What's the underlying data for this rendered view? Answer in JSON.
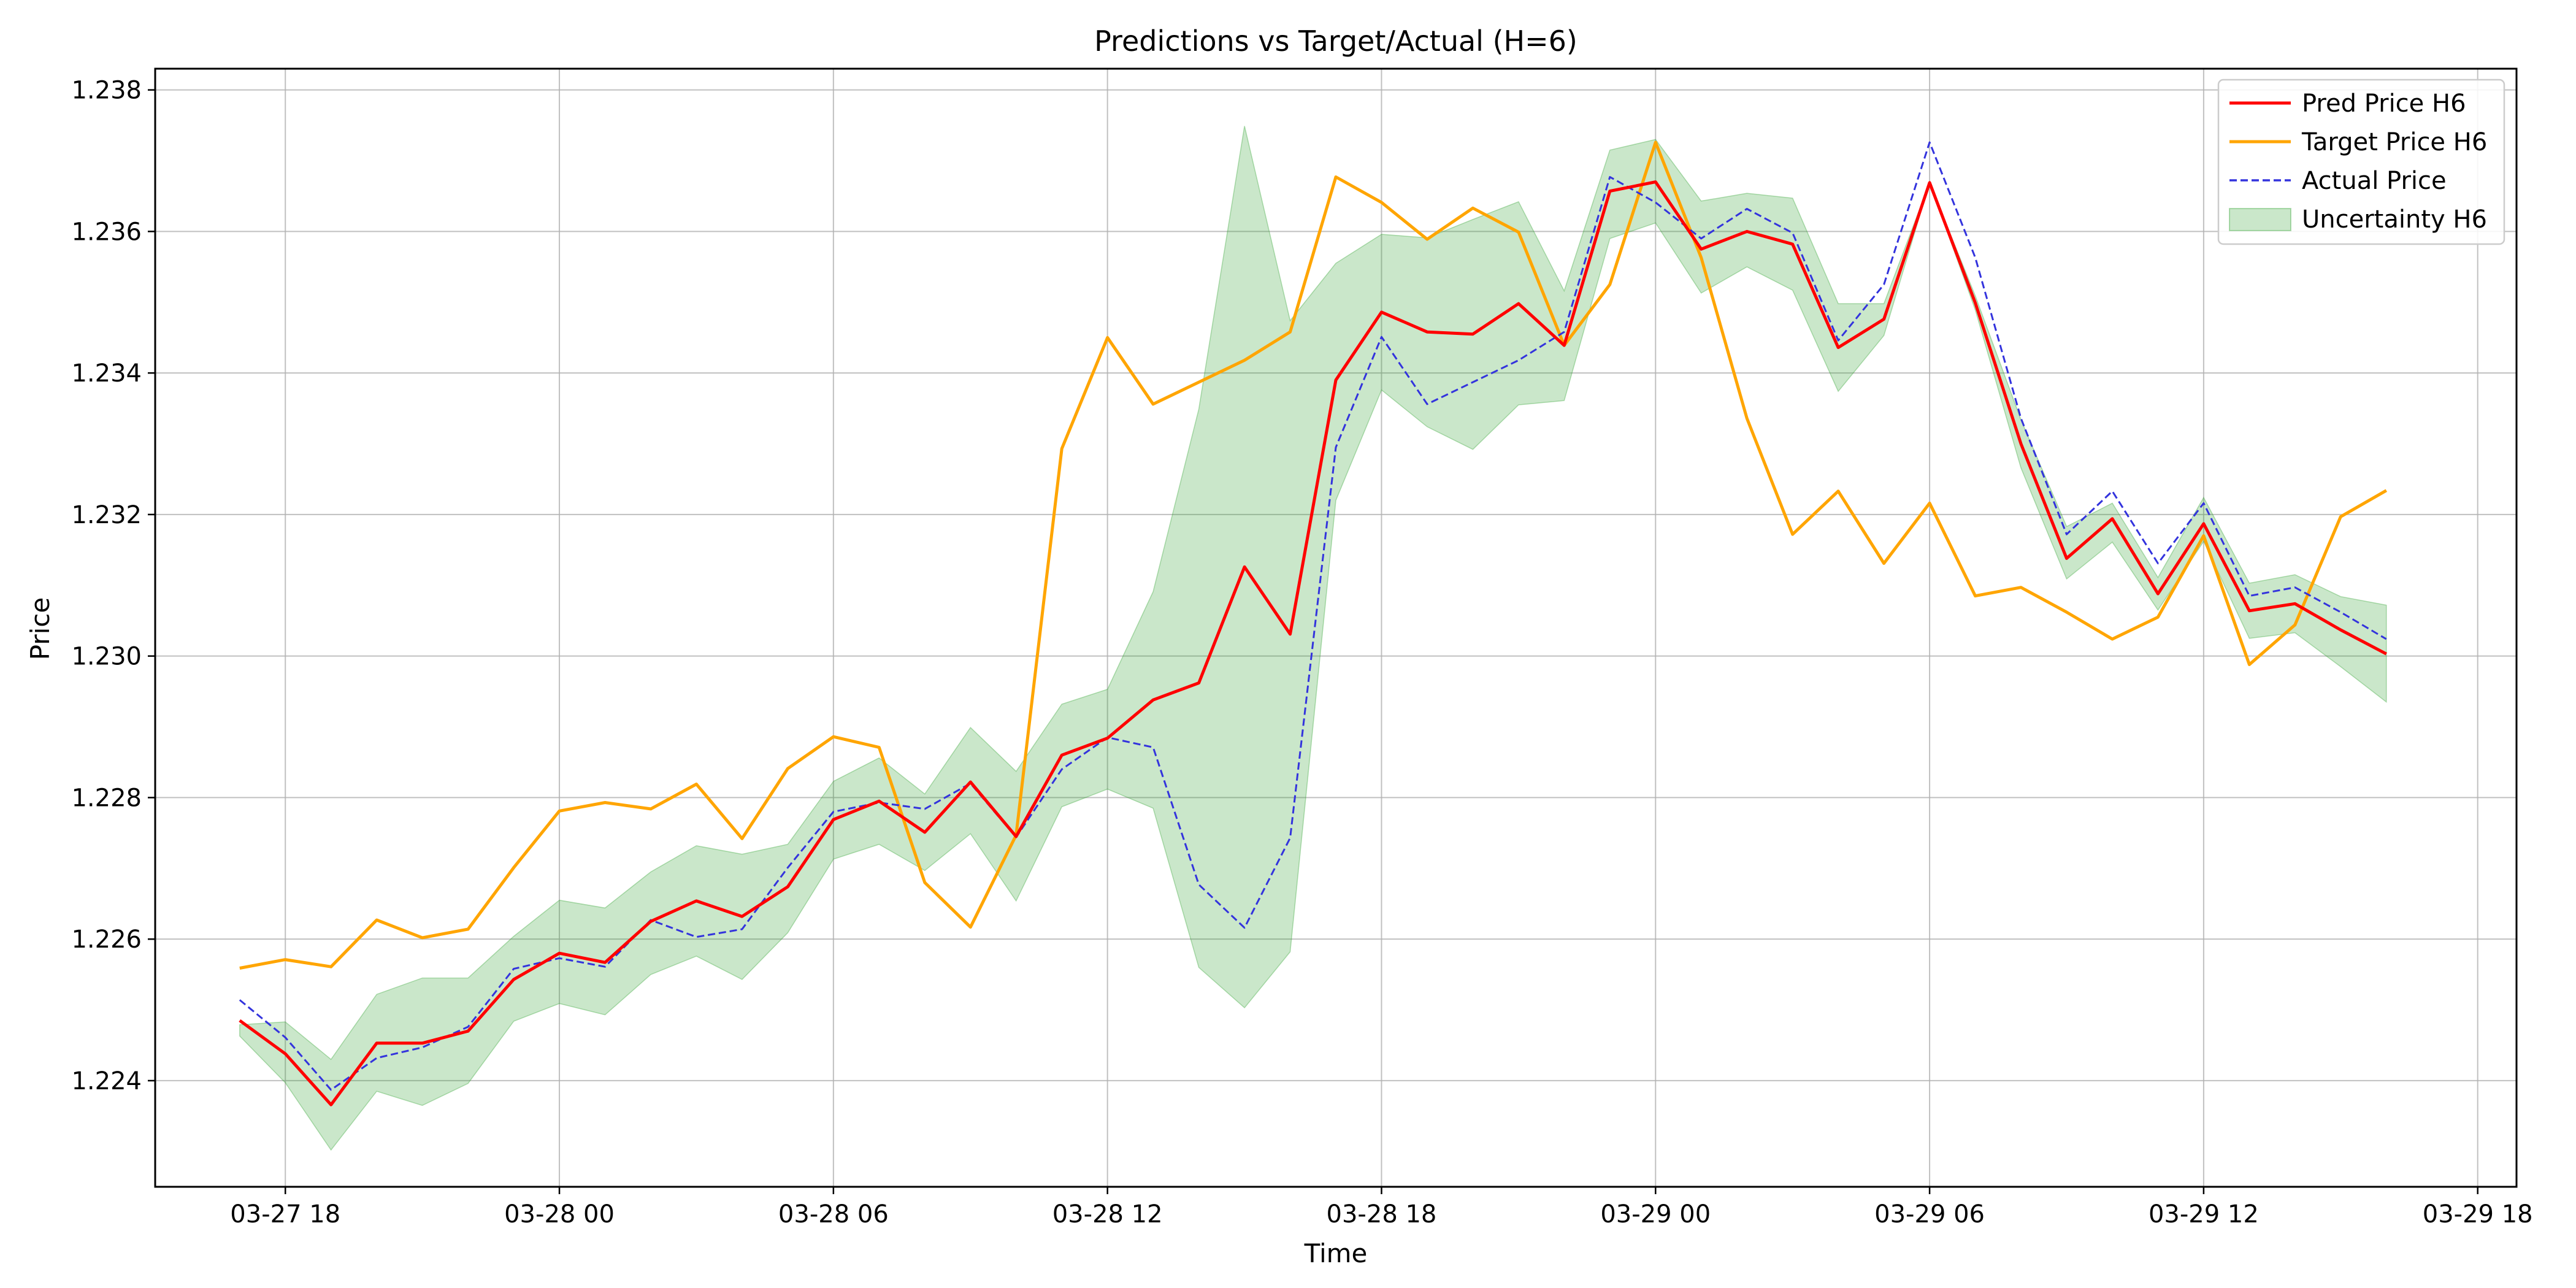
{
  "chart_data": {
    "type": "line",
    "title": "Predictions vs Target/Actual (H=6)",
    "xlabel": "Time",
    "ylabel": "Price",
    "x_tick_labels": [
      "03-27 18",
      "03-28 00",
      "03-28 06",
      "03-28 12",
      "03-28 18",
      "03-29 00",
      "03-29 06",
      "03-29 12",
      "03-29 18"
    ],
    "y_tick_labels": [
      "1.224",
      "1.226",
      "1.228",
      "1.230",
      "1.232",
      "1.234",
      "1.236",
      "1.238"
    ],
    "xlim": [
      "2024-03-27 15:09",
      "2024-03-29 18:51"
    ],
    "ylim": [
      1.2225,
      1.2383
    ],
    "grid": true,
    "legend_position": "top-right",
    "x": [
      "2024-03-27 17:00",
      "2024-03-27 18:00",
      "2024-03-27 19:00",
      "2024-03-27 20:00",
      "2024-03-27 21:00",
      "2024-03-27 22:00",
      "2024-03-27 23:00",
      "2024-03-28 00:00",
      "2024-03-28 01:00",
      "2024-03-28 02:00",
      "2024-03-28 03:00",
      "2024-03-28 04:00",
      "2024-03-28 05:00",
      "2024-03-28 06:00",
      "2024-03-28 07:00",
      "2024-03-28 08:00",
      "2024-03-28 09:00",
      "2024-03-28 10:00",
      "2024-03-28 11:00",
      "2024-03-28 12:00",
      "2024-03-28 13:00",
      "2024-03-28 14:00",
      "2024-03-28 15:00",
      "2024-03-28 16:00",
      "2024-03-28 17:00",
      "2024-03-28 18:00",
      "2024-03-28 19:00",
      "2024-03-28 20:00",
      "2024-03-28 21:00",
      "2024-03-28 22:00",
      "2024-03-28 23:00",
      "2024-03-29 00:00",
      "2024-03-29 01:00",
      "2024-03-29 02:00",
      "2024-03-29 03:00",
      "2024-03-29 04:00",
      "2024-03-29 05:00",
      "2024-03-29 06:00",
      "2024-03-29 07:00",
      "2024-03-29 08:00",
      "2024-03-29 09:00",
      "2024-03-29 10:00",
      "2024-03-29 11:00",
      "2024-03-29 12:00",
      "2024-03-29 13:00",
      "2024-03-29 14:00",
      "2024-03-29 15:00",
      "2024-03-29 16:00"
    ],
    "series": [
      {
        "name": "Pred Price H6",
        "color": "#ff0000",
        "style": "solid",
        "values": [
          1.22485,
          1.22438,
          1.22366,
          1.22453,
          1.22453,
          1.2247,
          1.22543,
          1.2258,
          1.22567,
          1.22625,
          1.22654,
          1.22632,
          1.22674,
          1.22769,
          1.22795,
          1.22751,
          1.22822,
          1.22745,
          1.2286,
          1.22884,
          1.22938,
          1.22962,
          1.23126,
          1.23031,
          1.2339,
          1.23486,
          1.23458,
          1.23455,
          1.23498,
          1.23439,
          1.23657,
          1.2367,
          1.23575,
          1.236,
          1.23582,
          1.23436,
          1.23476,
          1.23669,
          1.23499,
          1.233,
          1.23138,
          1.23194,
          1.23088,
          1.23187,
          1.23064,
          1.23074,
          1.23037,
          1.23003
        ]
      },
      {
        "name": "Target Price H6",
        "color": "#ffa500",
        "style": "solid",
        "values": [
          1.22559,
          1.22571,
          1.22561,
          1.22627,
          1.22602,
          1.22614,
          1.22701,
          1.22781,
          1.22793,
          1.22784,
          1.22819,
          1.22742,
          1.22841,
          1.22886,
          1.22871,
          1.2268,
          1.22617,
          1.22747,
          1.23293,
          1.2345,
          1.23356,
          1.23387,
          1.23418,
          1.23458,
          1.23677,
          1.23641,
          1.23589,
          1.23633,
          1.23599,
          1.23439,
          1.23525,
          1.23726,
          1.23563,
          1.23336,
          1.23172,
          1.23233,
          1.23131,
          1.23216,
          1.23085,
          1.23097,
          1.23062,
          1.23024,
          1.23055,
          1.2317,
          1.22988,
          1.23044,
          1.23197,
          1.23234
        ]
      },
      {
        "name": "Actual Price",
        "color": "#3333dd",
        "style": "dashed",
        "values": [
          1.22514,
          1.22461,
          1.22387,
          1.22432,
          1.22447,
          1.22476,
          1.22558,
          1.22573,
          1.22561,
          1.22627,
          1.22603,
          1.22614,
          1.22701,
          1.2278,
          1.22793,
          1.22784,
          1.2282,
          1.22744,
          1.2284,
          1.22885,
          1.22871,
          1.22677,
          1.22616,
          1.22743,
          1.23295,
          1.23451,
          1.23356,
          1.23387,
          1.23418,
          1.23458,
          1.23677,
          1.23641,
          1.2359,
          1.23632,
          1.23598,
          1.23446,
          1.23525,
          1.23726,
          1.23563,
          1.23336,
          1.23172,
          1.23233,
          1.23131,
          1.23216,
          1.23085,
          1.23097,
          1.23062,
          1.23024
        ]
      }
    ],
    "band": {
      "name": "Uncertainty H6",
      "color": "#2ca02c",
      "opacity": 0.25,
      "upper": [
        1.22479,
        1.22483,
        1.2243,
        1.22522,
        1.22545,
        1.22545,
        1.22604,
        1.22655,
        1.22644,
        1.22695,
        1.22732,
        1.2272,
        1.22734,
        1.22823,
        1.22856,
        1.22805,
        1.22899,
        1.22837,
        1.22932,
        1.22953,
        1.23091,
        1.23349,
        1.23749,
        1.23474,
        1.23555,
        1.23596,
        1.23591,
        1.23617,
        1.23642,
        1.23516,
        1.23715,
        1.2373,
        1.23643,
        1.23654,
        1.23647,
        1.23498,
        1.23498,
        1.23669,
        1.23509,
        1.23334,
        1.23183,
        1.23216,
        1.23111,
        1.23224,
        1.23103,
        1.23115,
        1.23084,
        1.23072
      ],
      "lower": [
        1.22463,
        1.22397,
        1.22302,
        1.22385,
        1.22365,
        1.22396,
        1.22484,
        1.22509,
        1.22493,
        1.2255,
        1.22576,
        1.22543,
        1.22609,
        1.22713,
        1.22734,
        1.22697,
        1.22749,
        1.22654,
        1.22787,
        1.22812,
        1.22785,
        1.2256,
        1.22503,
        1.22582,
        1.2322,
        1.23376,
        1.23324,
        1.23292,
        1.23355,
        1.23361,
        1.2359,
        1.23612,
        1.23513,
        1.2355,
        1.23517,
        1.23374,
        1.23453,
        1.23669,
        1.23489,
        1.23266,
        1.23109,
        1.23161,
        1.23065,
        1.23162,
        1.23025,
        1.23033,
        1.22985,
        1.22935
      ]
    }
  }
}
